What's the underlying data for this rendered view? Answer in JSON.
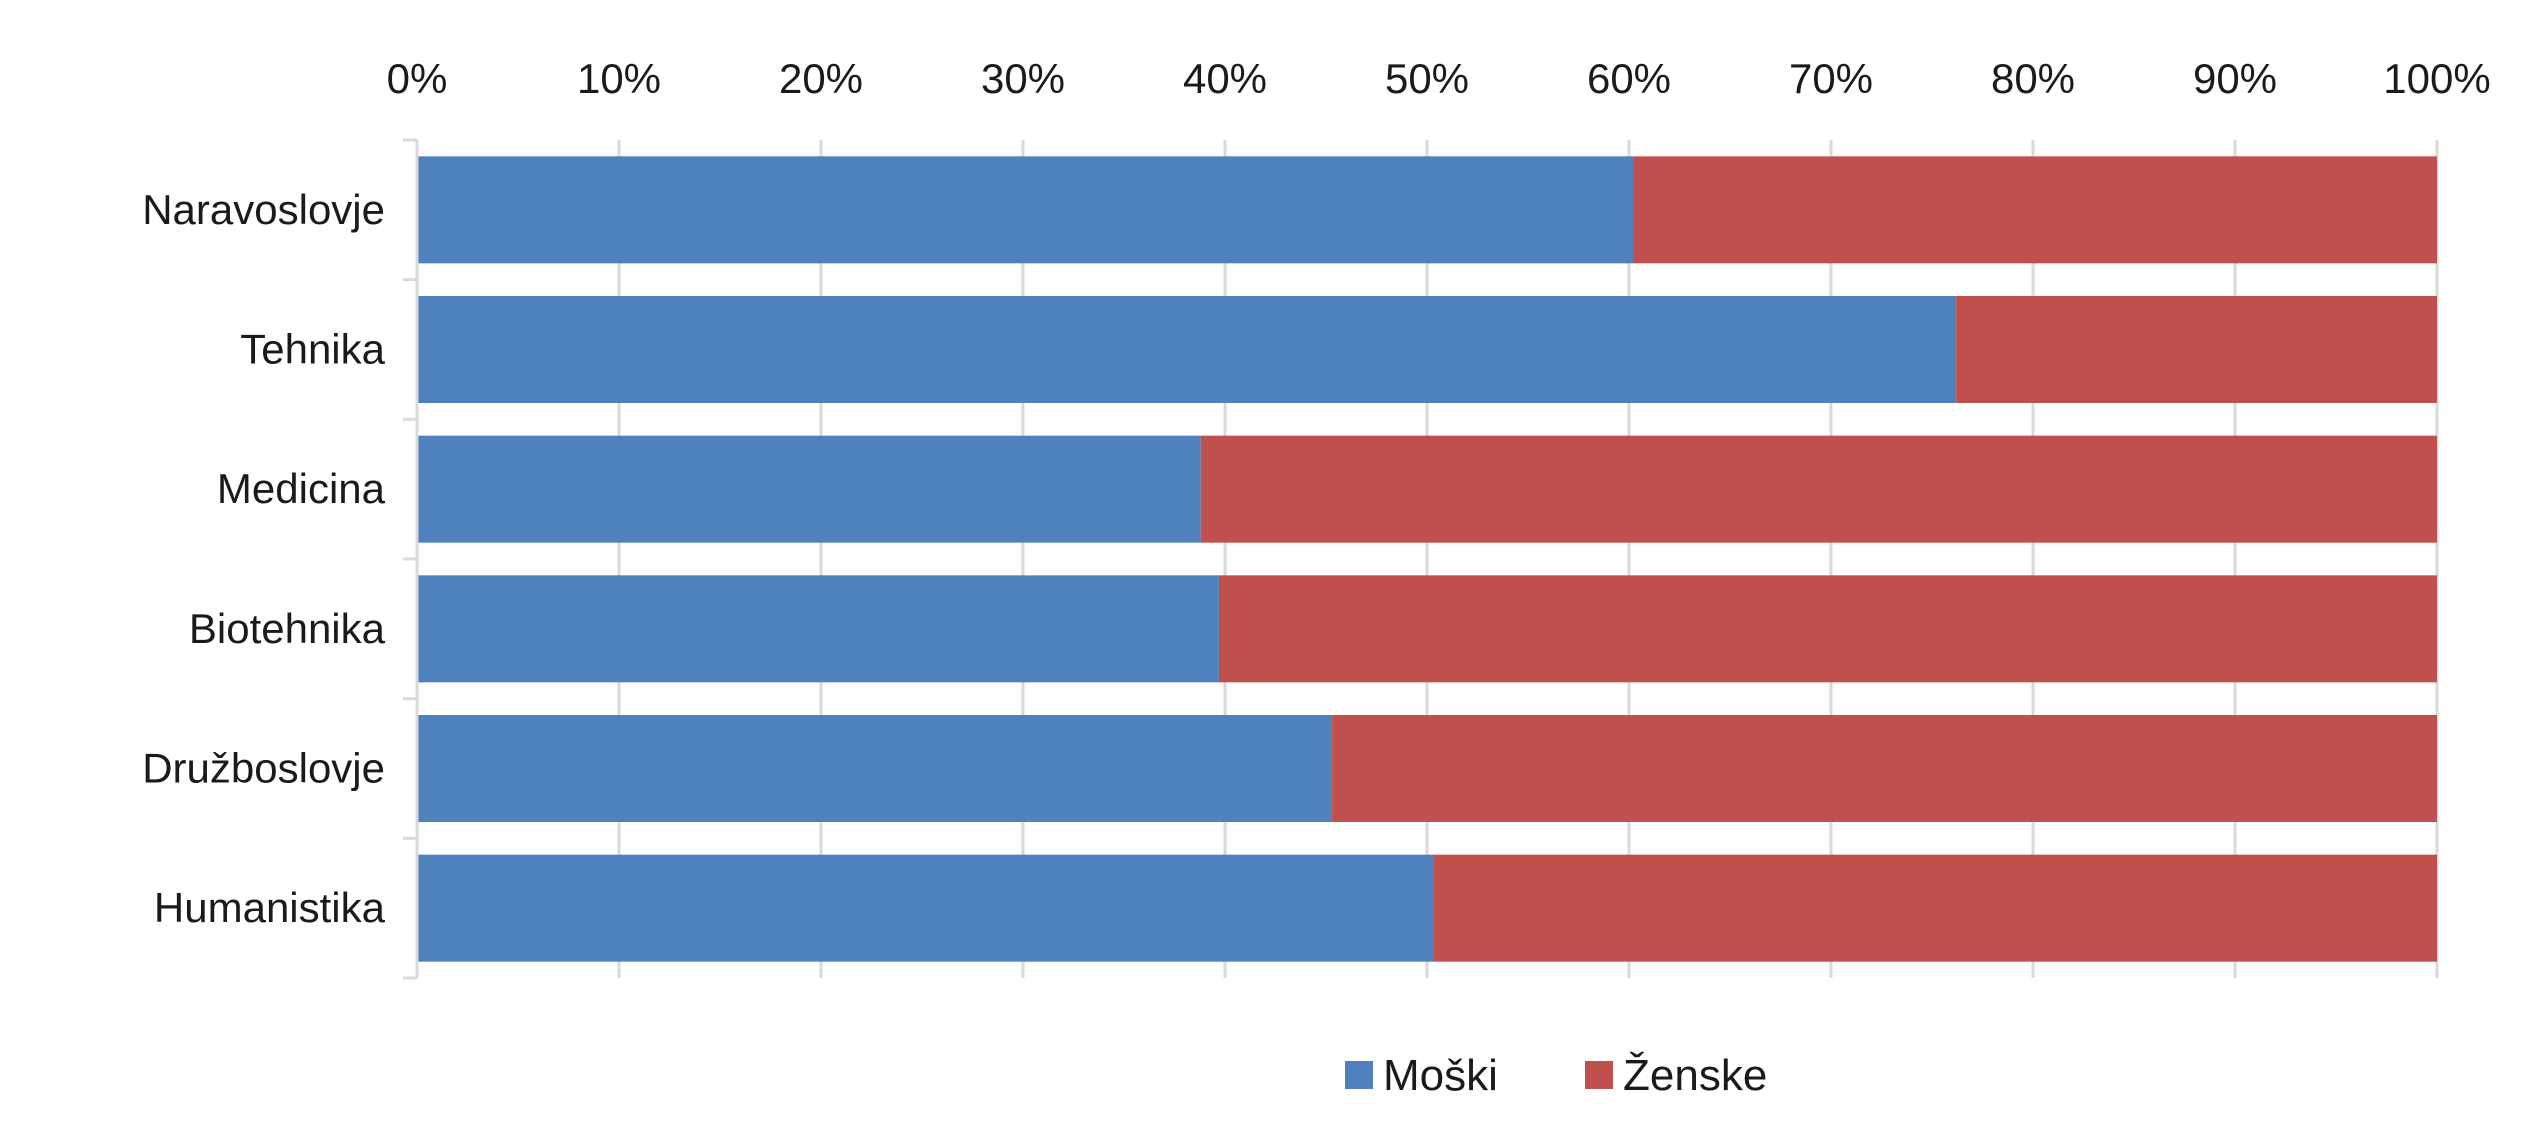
{
  "chart_data": {
    "type": "bar",
    "orientation": "horizontal",
    "stacked": true,
    "percent_scale": true,
    "categories": [
      "Naravoslovje",
      "Tehnika",
      "Medicina",
      "Biotehnika",
      "Družboslovje",
      "Humanistika"
    ],
    "series": [
      {
        "name": "Moški",
        "color": "#4f81bd",
        "values": [
          60.2,
          76.2,
          38.8,
          39.7,
          45.3,
          50.3
        ]
      },
      {
        "name": "Ženske",
        "color": "#c0504d",
        "values": [
          39.8,
          23.8,
          61.2,
          60.3,
          54.7,
          49.7
        ]
      }
    ],
    "x_ticks": [
      "0%",
      "10%",
      "20%",
      "30%",
      "40%",
      "50%",
      "60%",
      "70%",
      "80%",
      "90%",
      "100%"
    ],
    "xlim": [
      0,
      100
    ],
    "x_axis_position": "top",
    "grid": true,
    "legend_position": "bottom",
    "title": "",
    "xlabel": "",
    "ylabel": ""
  }
}
